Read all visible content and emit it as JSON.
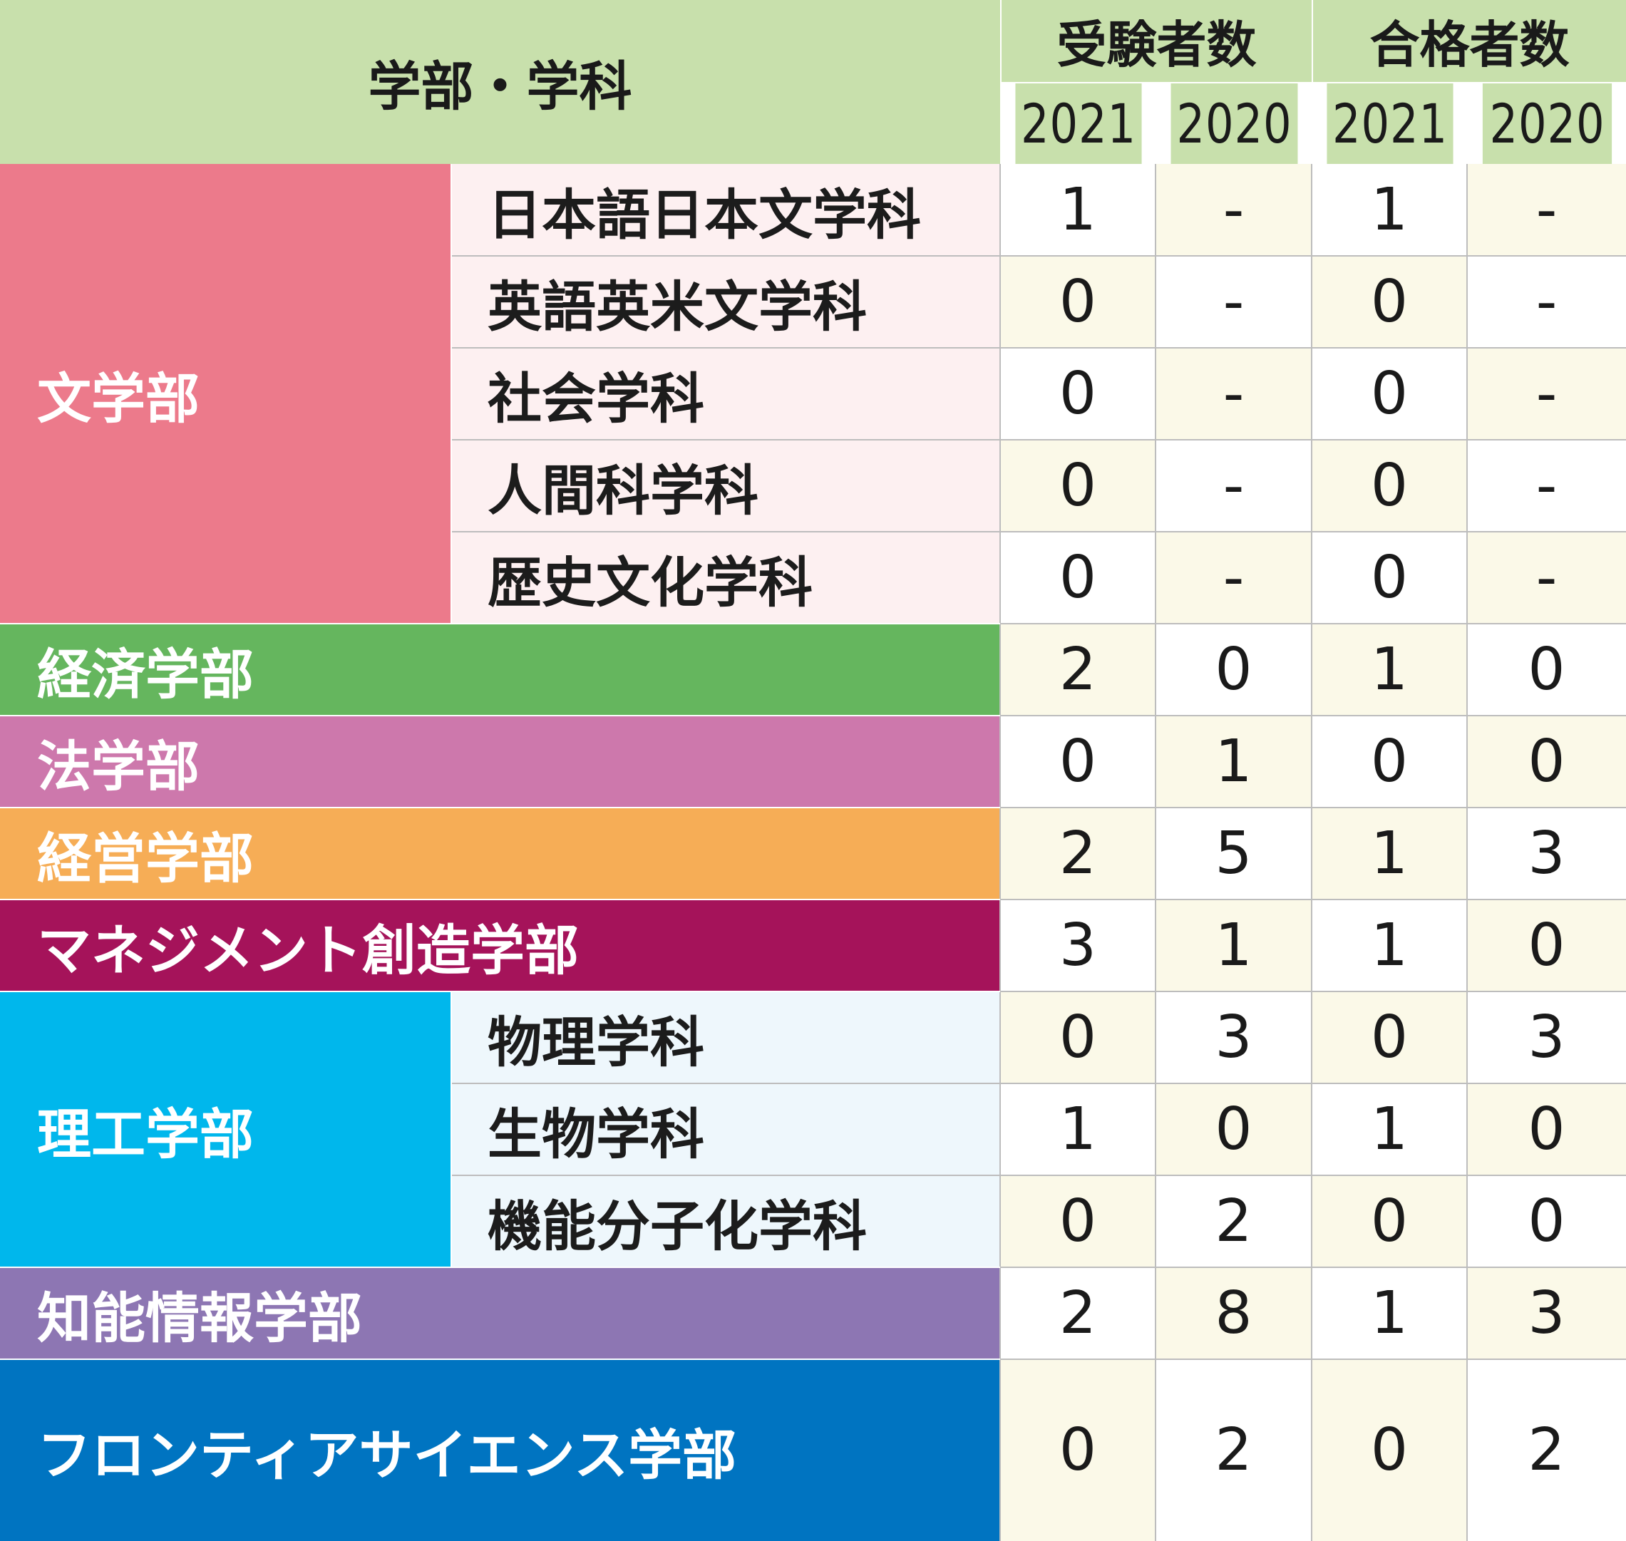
{
  "header": {
    "title": "学部・学科",
    "group_applicants": "受験者数",
    "group_passed": "合格者数",
    "years": [
      "2021",
      "2020",
      "2021",
      "2020"
    ]
  },
  "faculties": [
    {
      "name": "文学部",
      "color": "#ec7a8b",
      "dept_bg": "#fdf0f1",
      "departments": [
        {
          "name": "日本語日本文学科",
          "values": [
            "1",
            "-",
            "1",
            "-"
          ]
        },
        {
          "name": "英語英米文学科",
          "values": [
            "0",
            "-",
            "0",
            "-"
          ]
        },
        {
          "name": "社会学科",
          "values": [
            "0",
            "-",
            "0",
            "-"
          ]
        },
        {
          "name": "人間科学科",
          "values": [
            "0",
            "-",
            "0",
            "-"
          ]
        },
        {
          "name": "歴史文化学科",
          "values": [
            "0",
            "-",
            "0",
            "-"
          ]
        }
      ]
    },
    {
      "name": "経済学部",
      "color": "#65b65e",
      "values": [
        "2",
        "0",
        "1",
        "0"
      ]
    },
    {
      "name": "法学部",
      "color": "#cd78ac",
      "values": [
        "0",
        "1",
        "0",
        "0"
      ]
    },
    {
      "name": "経営学部",
      "color": "#f6ad56",
      "values": [
        "2",
        "5",
        "1",
        "3"
      ]
    },
    {
      "name": "マネジメント創造学部",
      "color": "#a5135a",
      "values": [
        "3",
        "1",
        "1",
        "0"
      ]
    },
    {
      "name": "理工学部",
      "color": "#00b7ec",
      "dept_bg": "#eef7fc",
      "departments": [
        {
          "name": "物理学科",
          "values": [
            "0",
            "3",
            "0",
            "3"
          ]
        },
        {
          "name": "生物学科",
          "values": [
            "1",
            "0",
            "1",
            "0"
          ]
        },
        {
          "name": "機能分子化学科",
          "values": [
            "0",
            "2",
            "0",
            "0"
          ]
        }
      ]
    },
    {
      "name": "知能情報学部",
      "color": "#8d76b3",
      "values": [
        "2",
        "8",
        "1",
        "3"
      ]
    },
    {
      "name": "フロンティアサイエンス学部",
      "color": "#0074c1",
      "values": [
        "0",
        "2",
        "0",
        "2"
      ]
    }
  ],
  "colors": {
    "header_bg": "#c8e0ac",
    "row_plain": "#ffffff",
    "row_tinted": "#fbf9e8",
    "grid": "#bdbdbd"
  }
}
